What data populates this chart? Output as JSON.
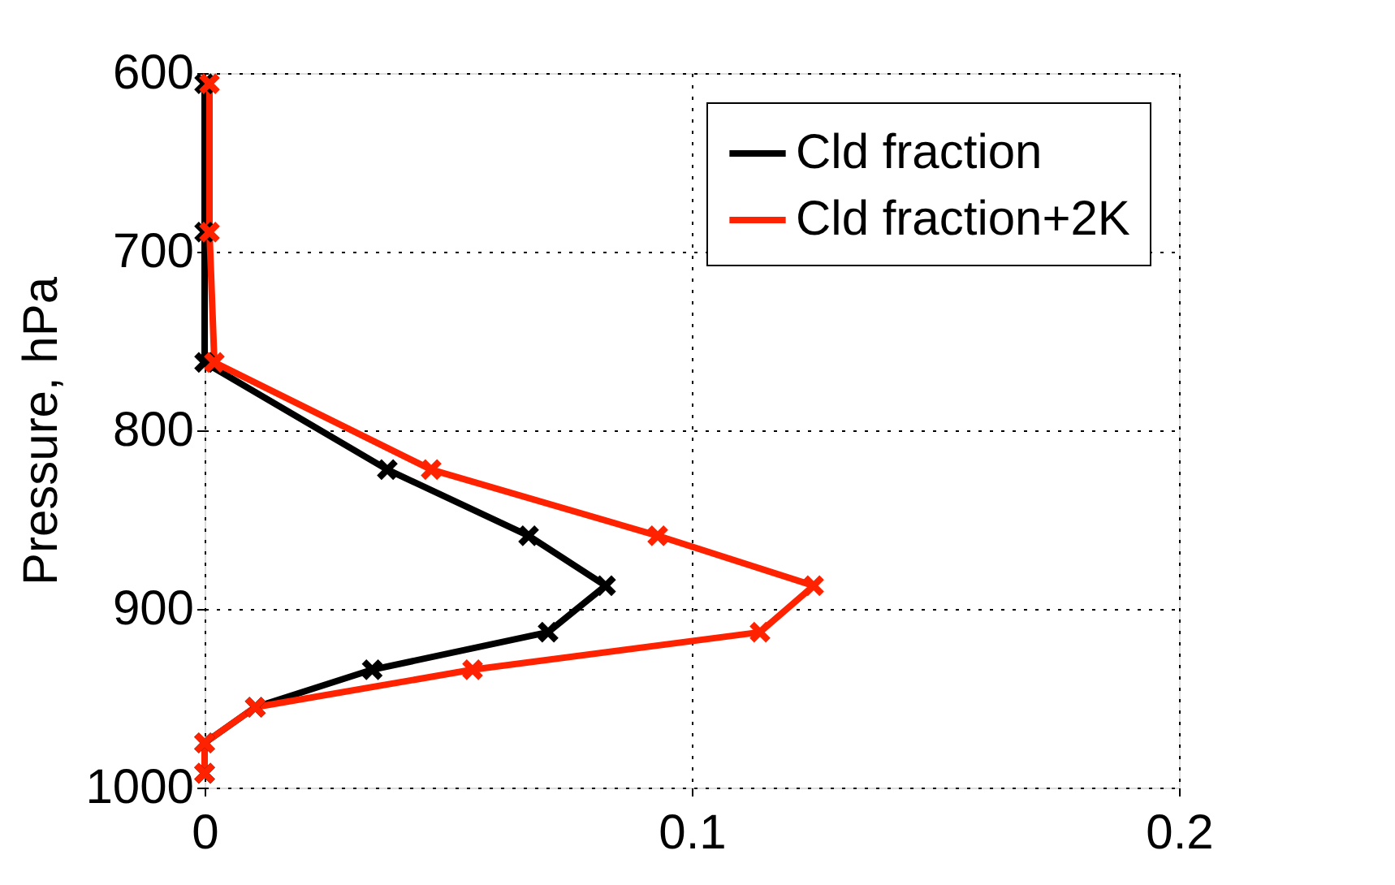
{
  "chart_data": {
    "type": "line",
    "ylabel": "Pressure, hPa",
    "series": [
      {
        "name": "Cld fraction",
        "color": "#000000",
        "x": [
          0,
          0,
          0,
          0.0375,
          0.0665,
          0.0823,
          0.0705,
          0.0344,
          0.0104,
          0,
          0
        ],
        "values": [
          606,
          689,
          762,
          822,
          859,
          887,
          913,
          934,
          955,
          975,
          992
        ]
      },
      {
        "name": "Cld fraction+2K",
        "color": "#ff2200",
        "x": [
          0.001,
          0.001,
          0.002,
          0.0465,
          0.093,
          0.125,
          0.114,
          0.055,
          0.0104,
          0,
          0
        ],
        "values": [
          606,
          689,
          762,
          822,
          859,
          887,
          913,
          934,
          955,
          975,
          992
        ]
      }
    ],
    "xlim": [
      0,
      0.2
    ],
    "xticks": [
      0,
      0.1,
      0.2
    ],
    "ylim": [
      1000,
      600
    ],
    "yticks": [
      600,
      700,
      800,
      900,
      1000
    ],
    "grid": true,
    "legend": "top right",
    "marker": "cross",
    "line_style": "solid"
  }
}
